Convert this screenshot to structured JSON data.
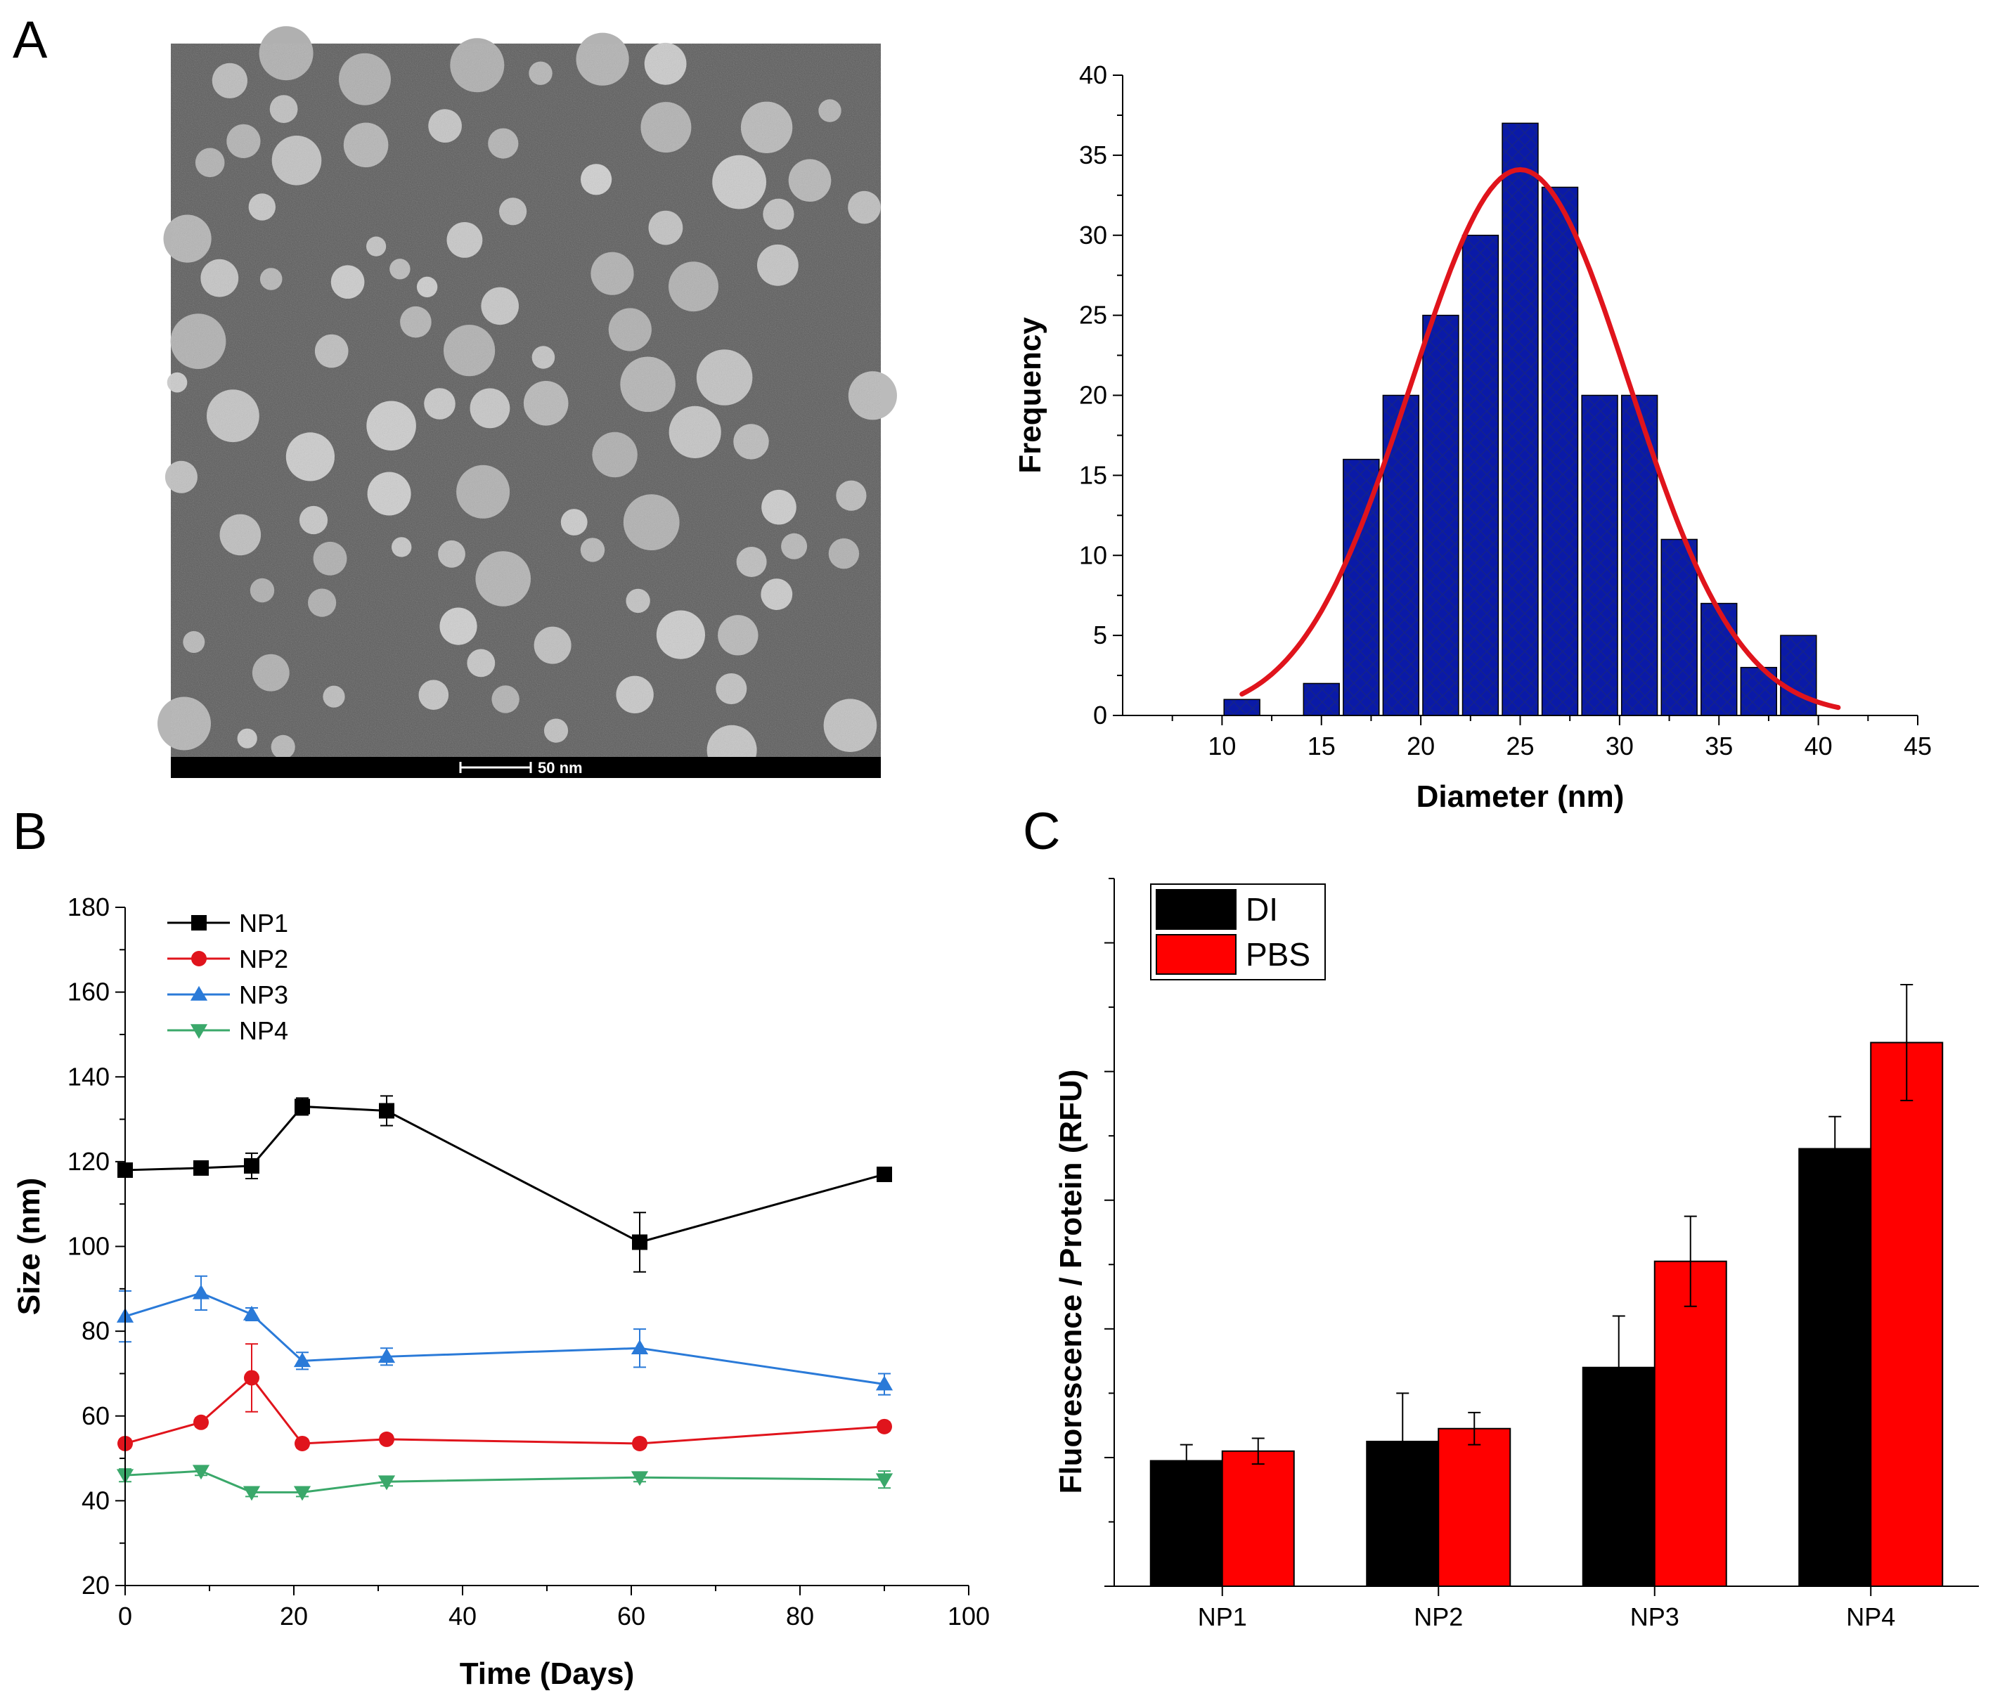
{
  "panels": {
    "a": "A",
    "b": "B",
    "c": "C"
  },
  "tem": {
    "scale_label": "50 nm"
  },
  "chart_data": [
    {
      "id": "histogram",
      "type": "bar",
      "xlabel": "Diameter (nm)",
      "ylabel": "Frequency",
      "xlim": [
        5,
        45
      ],
      "ylim": [
        0,
        40
      ],
      "xticks": [
        "10",
        "15",
        "20",
        "25",
        "30",
        "35",
        "40",
        "45"
      ],
      "yticks": [
        "0",
        "5",
        "10",
        "15",
        "20",
        "25",
        "30",
        "35",
        "40"
      ],
      "bin_width": 1.8,
      "x": [
        11,
        15,
        17,
        19,
        21,
        23,
        25,
        27,
        29,
        31,
        33,
        35,
        37,
        39
      ],
      "values": [
        1,
        2,
        16,
        20,
        25,
        30,
        37,
        33,
        20,
        20,
        11,
        7,
        3,
        5
      ],
      "bar_color": "#0a1aa8",
      "fit": {
        "type": "gaussian",
        "amplitude": 34.1,
        "center": 25,
        "sigma": 5.5,
        "xrange": [
          11,
          41
        ],
        "color": "#e0141c"
      }
    },
    {
      "id": "stability",
      "type": "line",
      "xlabel": "Time (Days)",
      "ylabel": "Size (nm)",
      "xlim": [
        0,
        100
      ],
      "ylim": [
        20,
        180
      ],
      "xticks": [
        "0",
        "20",
        "40",
        "60",
        "80",
        "100"
      ],
      "yticks": [
        "20",
        "40",
        "60",
        "80",
        "100",
        "120",
        "140",
        "160",
        "180"
      ],
      "x": [
        0,
        9,
        15,
        21,
        31,
        61,
        90
      ],
      "series": [
        {
          "name": "NP1",
          "color": "#000000",
          "marker": "square",
          "values": [
            118,
            118.5,
            119,
            133,
            132,
            101,
            117
          ],
          "errors": [
            1,
            1,
            3,
            2,
            3.5,
            7,
            1
          ]
        },
        {
          "name": "NP2",
          "color": "#e0141c",
          "marker": "circle",
          "values": [
            53.5,
            58.5,
            69,
            53.5,
            54.5,
            53.5,
            57.5
          ],
          "errors": [
            1,
            1,
            8,
            1,
            1,
            1,
            1
          ]
        },
        {
          "name": "NP3",
          "color": "#2a7ad8",
          "marker": "triangle-up",
          "values": [
            83.5,
            89,
            84,
            73,
            74,
            76,
            67.5
          ],
          "errors": [
            6,
            4,
            1.5,
            2,
            2,
            4.5,
            2.5
          ]
        },
        {
          "name": "NP4",
          "color": "#3aa86a",
          "marker": "triangle-down",
          "values": [
            46,
            47,
            42,
            42,
            44.5,
            45.5,
            45
          ],
          "errors": [
            1.5,
            1,
            1,
            1,
            1,
            1,
            2
          ]
        }
      ]
    },
    {
      "id": "fluorescence",
      "type": "bar",
      "xlabel": "",
      "ylabel": "Fluorescence / Protein (RFU)",
      "ylim": [
        0,
        11
      ],
      "categories": [
        "NP1",
        "NP2",
        "NP3",
        "NP4"
      ],
      "series": [
        {
          "name": "DI",
          "color": "#000000",
          "values": [
            1.95,
            2.25,
            3.4,
            6.8
          ],
          "errors": [
            0.25,
            0.75,
            0.8,
            0.5
          ]
        },
        {
          "name": "PBS",
          "color": "#ff0000",
          "values": [
            2.1,
            2.45,
            5.05,
            8.45
          ],
          "errors": [
            0.2,
            0.25,
            0.7,
            0.9
          ]
        }
      ]
    }
  ]
}
